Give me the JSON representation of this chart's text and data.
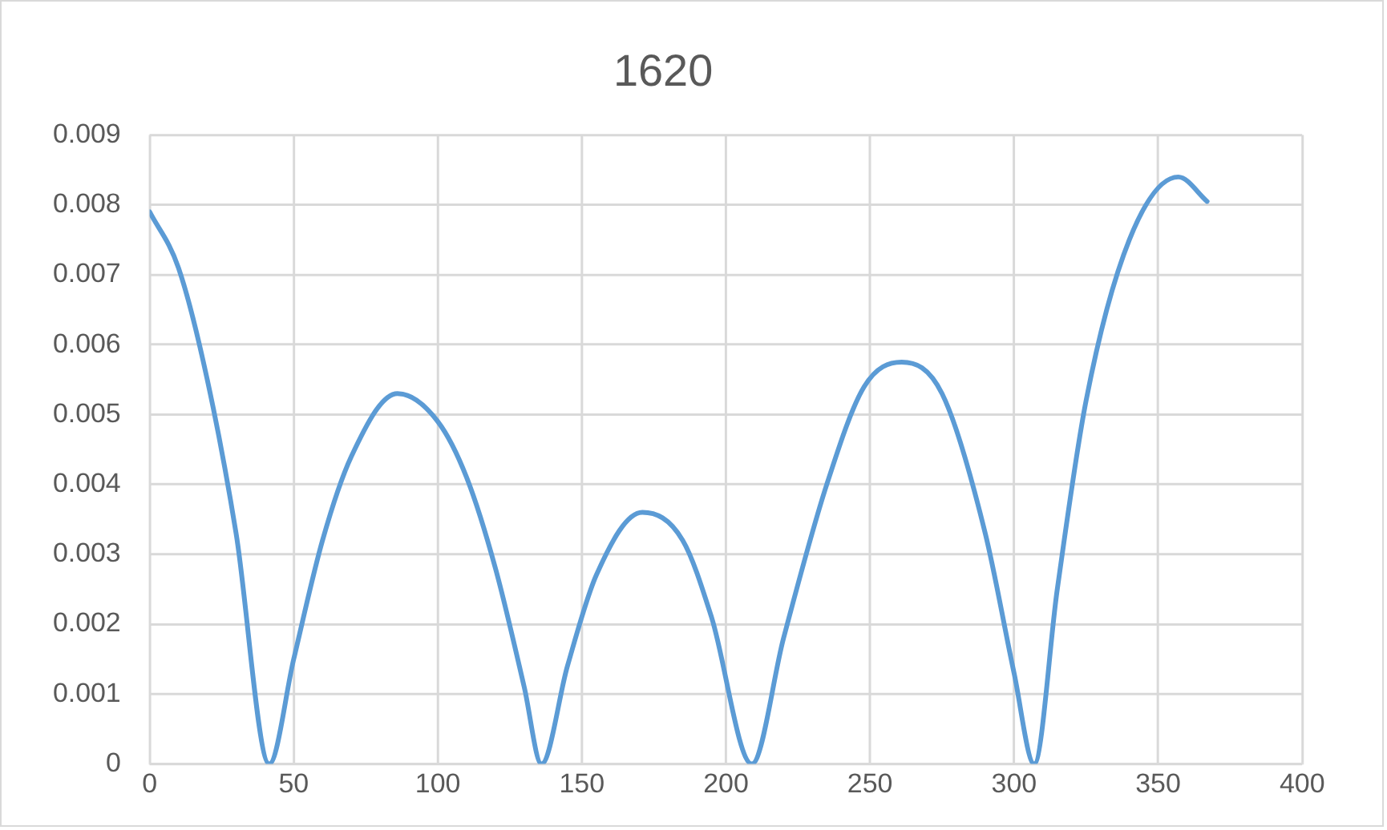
{
  "chart_data": {
    "type": "line",
    "title": "1620",
    "x": [
      0,
      10,
      20,
      30,
      41.5,
      50,
      60,
      70,
      86,
      100,
      110,
      120,
      130,
      136,
      145,
      155,
      171,
      185,
      195,
      209,
      220,
      235,
      248,
      261,
      275,
      290,
      300,
      307,
      315,
      325,
      340,
      357,
      367
    ],
    "series": [
      {
        "color": "#5b9bd5",
        "values": [
          0.0079,
          0.0071,
          0.0055,
          0.0033,
          0,
          0.0015,
          0.0032,
          0.0044,
          0.0053,
          0.0049,
          0.0041,
          0.0028,
          0.0011,
          0,
          0.0014,
          0.0027,
          0.0036,
          0.0032,
          0.0021,
          0,
          0.0018,
          0.004,
          0.0054,
          0.00575,
          0.0053,
          0.0033,
          0.0013,
          0,
          0.0025,
          0.0052,
          0.0075,
          0.0084,
          0.00805
        ]
      }
    ],
    "xlim": [
      0,
      400
    ],
    "xticks": [
      0,
      50,
      100,
      150,
      200,
      250,
      300,
      350,
      400
    ],
    "ylim": [
      0,
      0.009
    ],
    "yticks": [
      0,
      0.001,
      0.002,
      0.003,
      0.004,
      0.005,
      0.006,
      0.007,
      0.008,
      0.009
    ],
    "grid": true,
    "legend": false,
    "marker": "none",
    "line_style": "solid"
  }
}
